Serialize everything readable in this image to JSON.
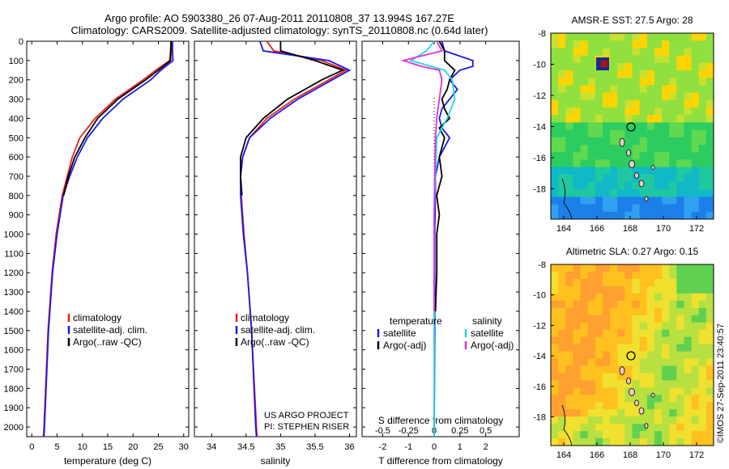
{
  "header": {
    "line1": "Argo profile: AO 5903380_26 07-Aug-2011 20110808_37 13.994S 167.27E",
    "line2": "Climatology: CARS2009. Satellite-adjusted climatology: synTS_20110808.nc (0.64d later)"
  },
  "watermark": "©IMOS 27-Sep-2011 23:40:57",
  "project": {
    "line1": "US ARGO PROJECT",
    "line2": "PI: STEPHEN RISER"
  },
  "colors": {
    "climatology": "#e8201a",
    "satellite": "#1a1ae8",
    "argo": "#000000",
    "sat_sal": "#22d8e0",
    "argo_sal": "#e030e0"
  },
  "chart_data": [
    {
      "type": "line",
      "panel": "temperature",
      "xlabel": "temperature (deg C)",
      "xlim": [
        -1,
        31
      ],
      "xticks": [
        0,
        5,
        10,
        15,
        20,
        25,
        30
      ],
      "ylim": [
        2050,
        0
      ],
      "yticks": [
        0,
        100,
        200,
        300,
        400,
        500,
        600,
        700,
        800,
        900,
        1000,
        1100,
        1200,
        1300,
        1400,
        1500,
        1600,
        1700,
        1800,
        1900,
        2000
      ],
      "legend": [
        "climatology",
        "satellite-adj. clim.",
        "Argo(..raw -QC)"
      ],
      "series": [
        {
          "name": "climatology",
          "color": "climatology",
          "depth": [
            0,
            50,
            100,
            150,
            200,
            300,
            400,
            500,
            600,
            700,
            800,
            1000,
            1200,
            1500,
            2000,
            2050
          ],
          "values": [
            27.5,
            27.4,
            27.2,
            24.5,
            22,
            16.5,
            12.5,
            9.5,
            8,
            7,
            6,
            4.8,
            4,
            3.2,
            2.4,
            2.3
          ]
        },
        {
          "name": "satellite-adj. clim.",
          "color": "satellite",
          "depth": [
            0,
            50,
            100,
            150,
            200,
            300,
            400,
            500,
            600,
            700,
            800,
            1000,
            1200,
            1500,
            2000,
            2050
          ],
          "values": [
            27.8,
            27.8,
            27.9,
            25.5,
            23.5,
            18,
            14,
            11,
            9,
            7.5,
            6.2,
            5,
            4.1,
            3.3,
            2.5,
            2.4
          ]
        },
        {
          "name": "Argo(..raw -QC)",
          "color": "argo",
          "depth": [
            0,
            50,
            100,
            150,
            200,
            300,
            400,
            500,
            600,
            700,
            800
          ],
          "values": [
            27.5,
            27.5,
            27.4,
            25,
            22.5,
            17,
            13,
            10.5,
            8.5,
            7.2,
            6.3
          ]
        }
      ]
    },
    {
      "type": "line",
      "panel": "salinity",
      "xlabel": "salinity",
      "xlim": [
        33.75,
        36.1
      ],
      "xticks": [
        34,
        34.5,
        35,
        35.5,
        36
      ],
      "ylim": [
        2050,
        0
      ],
      "legend": [
        "climatology",
        "satellite-adj. clim.",
        "Argo(..raw -QC)"
      ],
      "series": [
        {
          "name": "climatology",
          "color": "climatology",
          "depth": [
            0,
            50,
            100,
            150,
            200,
            300,
            400,
            500,
            600,
            700,
            800,
            1000,
            1200,
            1500,
            2000,
            2050
          ],
          "values": [
            34.8,
            34.9,
            35.6,
            35.95,
            35.7,
            35.2,
            34.8,
            34.55,
            34.45,
            34.42,
            34.43,
            34.47,
            34.52,
            34.58,
            34.65,
            34.66
          ]
        },
        {
          "name": "satellite-adj. clim.",
          "color": "satellite",
          "depth": [
            0,
            50,
            100,
            150,
            200,
            300,
            400,
            500,
            600,
            700,
            800,
            1000,
            1200,
            1500,
            2000,
            2050
          ],
          "values": [
            34.7,
            34.75,
            35.7,
            36.0,
            35.75,
            35.25,
            34.85,
            34.55,
            34.45,
            34.42,
            34.42,
            34.46,
            34.52,
            34.58,
            34.64,
            34.65
          ]
        },
        {
          "name": "Argo(..raw -QC)",
          "color": "argo",
          "depth": [
            0,
            50,
            100,
            150,
            200,
            300,
            400,
            500,
            600,
            700,
            800
          ],
          "values": [
            35.0,
            35.0,
            35.5,
            35.9,
            35.6,
            35.1,
            34.75,
            34.5,
            34.42,
            34.42,
            34.44
          ]
        }
      ]
    },
    {
      "type": "line",
      "panel": "difference",
      "xlabel": "T difference from climatology",
      "xlabel2": "S difference from climatology",
      "xlim": [
        -2.8,
        3.3
      ],
      "xticks": [
        -2,
        -1,
        0,
        1,
        2
      ],
      "sticks": [
        "-0.5",
        "-0.25",
        "0",
        "0.25",
        "0.5"
      ],
      "ylim": [
        2050,
        0
      ],
      "legend_temperature": [
        "temperature",
        "satellite",
        "Argo(-adj)"
      ],
      "legend_salinity": [
        "salinity",
        "satellite",
        "Argo(-adj)"
      ],
      "series": [
        {
          "name": "satellite",
          "color": "satellite",
          "depth": [
            0,
            50,
            100,
            130,
            150,
            200,
            250,
            300,
            350,
            400,
            450,
            500,
            550,
            600,
            700,
            800,
            1000,
            1500,
            2050
          ],
          "values": [
            0.3,
            0.4,
            1.5,
            1.5,
            1.0,
            0.6,
            0.9,
            0.6,
            0.3,
            0.2,
            0.3,
            0.6,
            0.4,
            0.2,
            0.05,
            0.05,
            0.02,
            0.02,
            0.0
          ]
        },
        {
          "name": "Argo(-adj)",
          "color": "argo",
          "depth": [
            0,
            50,
            100,
            150,
            200,
            250,
            300,
            350,
            400,
            450,
            500,
            550,
            600,
            700,
            800,
            900,
            1000,
            1200,
            1400
          ],
          "values": [
            0.2,
            0.4,
            0.4,
            0.8,
            0.6,
            0.5,
            0.3,
            0.4,
            0.6,
            0.2,
            0.4,
            0.3,
            0.2,
            0.3,
            0.1,
            0.2,
            0.1,
            0.1,
            0.05
          ]
        },
        {
          "name": "satellite",
          "color": "sat_sal",
          "depth": [
            0,
            50,
            100,
            150,
            200,
            300,
            400,
            500,
            700,
            900,
            1200,
            1500,
            2050
          ],
          "values": [
            0.0,
            -0.3,
            -0.9,
            0.4,
            0.7,
            0.8,
            0.5,
            0.1,
            0.05,
            0.0,
            0.0,
            0.0,
            0.0
          ]
        },
        {
          "name": "Argo(-adj)",
          "color": "argo_sal",
          "depth": [
            0,
            50,
            100,
            130,
            150,
            200,
            300,
            400,
            500,
            700,
            900,
            1200,
            1400
          ],
          "values": [
            0.1,
            0.3,
            -1.2,
            -0.5,
            0.2,
            0.3,
            0.2,
            0.1,
            0.05,
            0.02,
            0.0,
            0.0,
            0.0
          ]
        }
      ]
    }
  ],
  "maps": [
    {
      "title": "AMSR-E SST: 27.5 Argo: 28",
      "xticks": [
        "164",
        "166",
        "168",
        "170",
        "172"
      ],
      "yticks": [
        "-8",
        "-10",
        "-12",
        "-14",
        "-16",
        "-18"
      ],
      "palette": "sst"
    },
    {
      "title": "Altimetric SLA: 0.27 Argo: 0.15",
      "xticks": [
        "164",
        "166",
        "168",
        "170",
        "172"
      ],
      "yticks": [
        "-8",
        "-10",
        "-12",
        "-14",
        "-16",
        "-18"
      ],
      "palette": "sla"
    }
  ]
}
